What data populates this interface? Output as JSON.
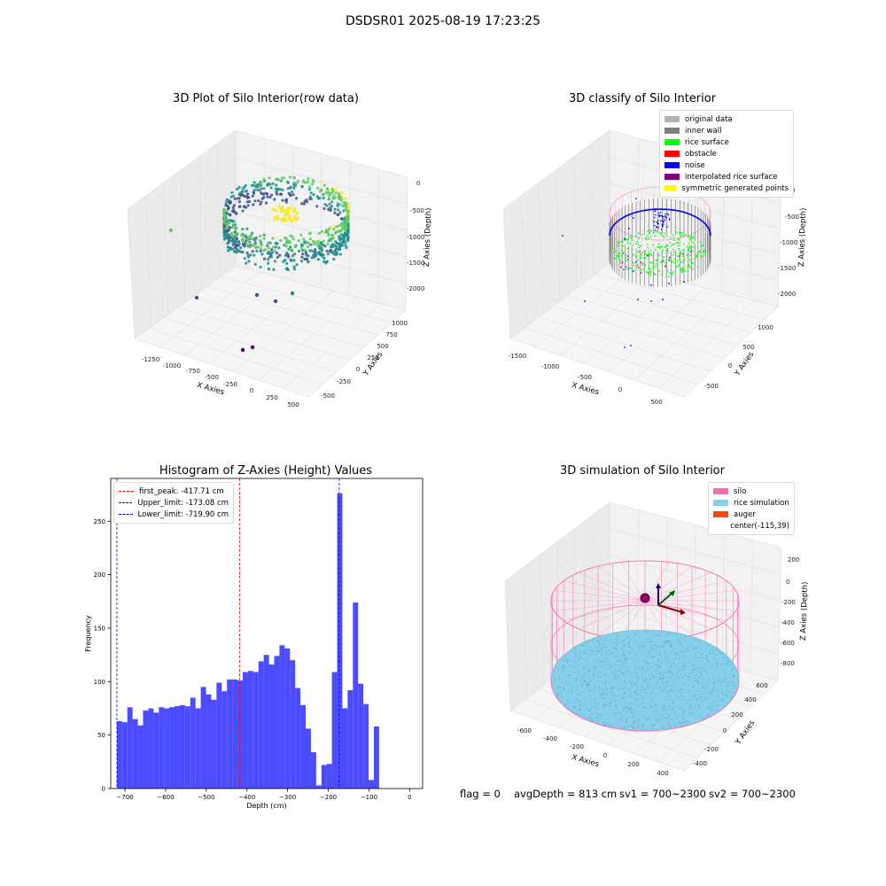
{
  "suptitle": "DSDSR01 2025-08-19 17:23:25",
  "chart_data": [
    {
      "type": "scatter",
      "title": "3D Plot of Silo Interior(row data)",
      "xlabel": "X Axies",
      "ylabel": "Y Axies",
      "zlabel": "Z Axies (Depth)",
      "x_ticks": [
        "-1250",
        "-1000",
        "-750",
        "-500",
        "-250",
        "0",
        "250",
        "500"
      ],
      "y_ticks": [
        "-500",
        "0",
        "500",
        "1000"
      ],
      "y_ticks_minor": [
        "-250",
        "250",
        "750"
      ],
      "z_ticks": [
        "0",
        "-500",
        "-1000",
        "-1500",
        "-2000"
      ],
      "colormap": "viridis",
      "colors": [
        "#440154",
        "#3b528b",
        "#21918c",
        "#5ec962",
        "#fde725"
      ]
    },
    {
      "type": "scatter",
      "title": "3D classify of Silo Interior",
      "xlabel": "X Axies",
      "ylabel": "Y Axies",
      "zlabel": "Z Axies (Depth)",
      "x_ticks": [
        "-1500",
        "-1000",
        "-500",
        "0",
        "500"
      ],
      "y_ticks": [
        "-500",
        "0",
        "500",
        "1000"
      ],
      "z_ticks": [
        "0",
        "-500",
        "-1000",
        "-1500",
        "-2000"
      ],
      "legend": [
        {
          "label": "original data",
          "color": "#b3b3b3"
        },
        {
          "label": "inner wall",
          "color": "#808080"
        },
        {
          "label": "rice surface",
          "color": "#00ff00"
        },
        {
          "label": "obstacle",
          "color": "#ff0000"
        },
        {
          "label": "noise",
          "color": "#0000ff"
        },
        {
          "label": "interpolated rice surface",
          "color": "#800080"
        },
        {
          "label": "symmetric generated points",
          "color": "#ffff00"
        }
      ],
      "legend_loc": "upper right"
    },
    {
      "type": "bar",
      "title": "Histogram of Z-Axies (Height) Values",
      "xlabel": "Depth (cm)",
      "ylabel": "Frequency",
      "xlim": [
        -735,
        32
      ],
      "ylim": [
        0,
        290
      ],
      "x_ticks": [
        -700,
        -600,
        -500,
        -400,
        -300,
        -200,
        -100,
        0
      ],
      "y_ticks": [
        0,
        50,
        100,
        150,
        200,
        250
      ],
      "bin_start": -720,
      "bin_width": 12.9,
      "values": [
        63,
        62,
        76,
        65,
        59,
        73,
        75,
        71,
        76,
        75,
        76,
        77,
        78,
        77,
        85,
        75,
        95,
        88,
        83,
        99,
        91,
        102,
        102,
        101,
        109,
        110,
        109,
        119,
        125,
        116,
        124,
        134,
        131,
        120,
        94,
        78,
        56,
        34,
        3,
        22,
        23,
        109,
        276,
        75,
        92,
        174,
        98,
        79,
        8,
        58
      ],
      "bar_color": "#4b4bff",
      "vlines": [
        {
          "label": "first_peak: -417.71 cm",
          "value": -417.71,
          "color": "#ff0000"
        },
        {
          "label": "Upper_limit: -173.08 cm",
          "value": -173.08,
          "color": "#0000ff"
        },
        {
          "label": "Lower_limit: -719.90 cm",
          "value": -719.9,
          "color": "#0000ff"
        }
      ],
      "legend_loc": "upper left"
    },
    {
      "type": "scatter",
      "title": "3D simulation of Silo Interior",
      "xlabel": "X Axies",
      "ylabel": "Y Axies",
      "zlabel": "Z Axies (Depth)",
      "x_ticks": [
        "-600",
        "-400",
        "-200",
        "0",
        "200",
        "400"
      ],
      "y_ticks": [
        "-400",
        "-200",
        "0",
        "200",
        "400",
        "600"
      ],
      "z_ticks": [
        "200",
        "0",
        "-200",
        "-400",
        "-600",
        "-800"
      ],
      "legend": [
        {
          "label": "silo",
          "color": "#ff69b4"
        },
        {
          "label": "rice simulation",
          "color": "#87ceeb"
        },
        {
          "label": "auger",
          "color": "#ff4500"
        },
        {
          "label": "center(-115,39)",
          "color": ""
        }
      ],
      "legend_loc": "upper right"
    }
  ],
  "footer": {
    "flag": "flag = 0",
    "avg_depth": "avgDepth = 813 cm",
    "sv1": "sv1 = 700~2300",
    "sv2": "sv2 = 700~2300"
  }
}
